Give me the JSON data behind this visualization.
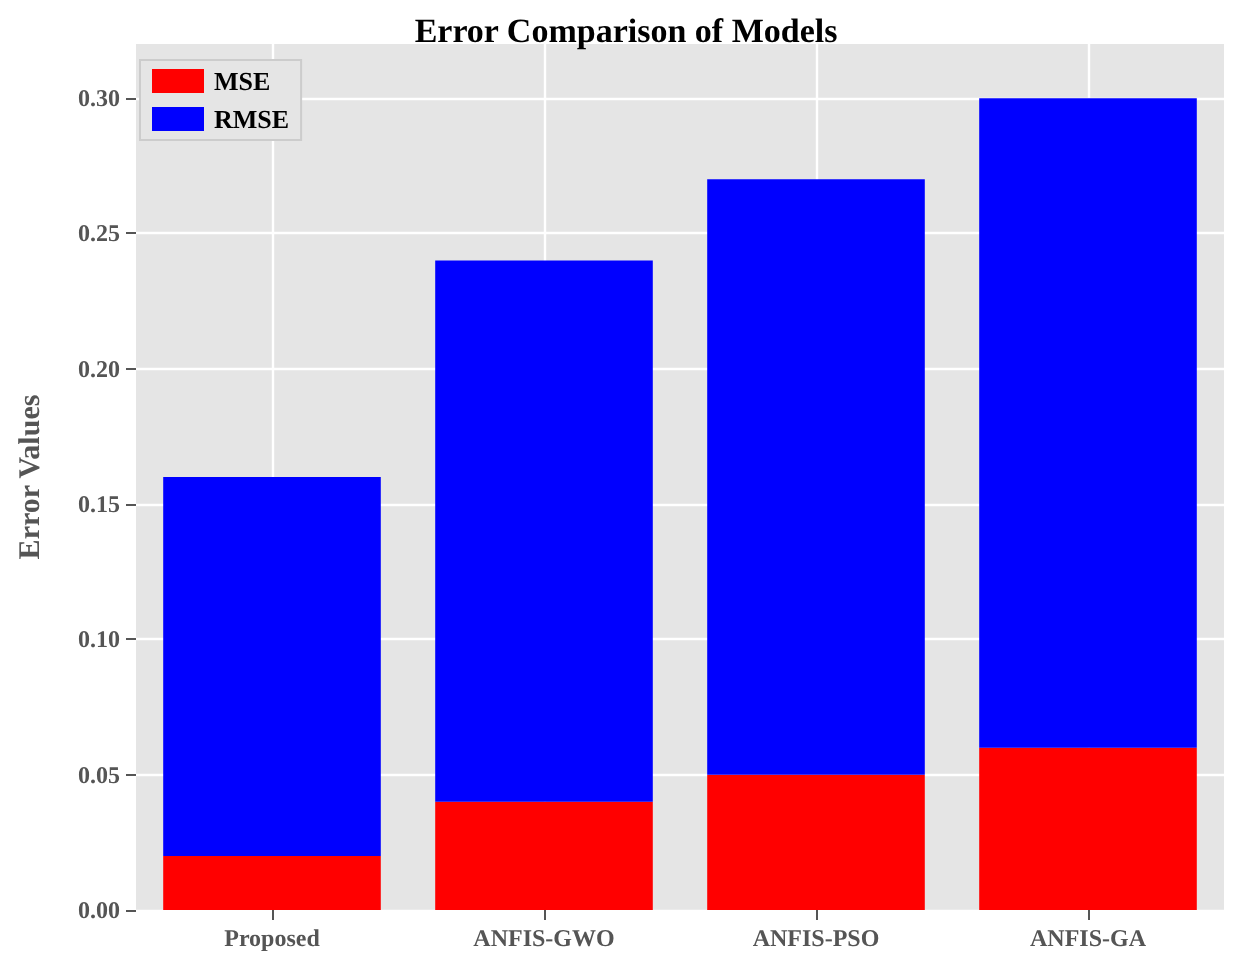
{
  "chart_data": {
    "type": "bar",
    "title": "Error Comparison of Models",
    "ylabel": "Error Values",
    "categories": [
      "Proposed",
      "ANFIS-GWO",
      "ANFIS-PSO",
      "ANFIS-GA"
    ],
    "series": [
      {
        "name": "MSE",
        "color": "#ff0000",
        "values": [
          0.02,
          0.04,
          0.05,
          0.06
        ]
      },
      {
        "name": "RMSE",
        "color": "#0000ff",
        "values": [
          0.14,
          0.2,
          0.22,
          0.24
        ]
      }
    ],
    "stacked": true,
    "ylim": [
      0,
      0.32
    ],
    "yticks": [
      {
        "value": 0,
        "label": "0.00"
      },
      0.05,
      {
        "value": 0.1,
        "label": "0.10"
      },
      0.15,
      {
        "value": 0.2,
        "label": "0.20"
      },
      0.25,
      {
        "value": 0.3,
        "label": "0.30"
      }
    ],
    "grid": true,
    "legend": "top left"
  }
}
